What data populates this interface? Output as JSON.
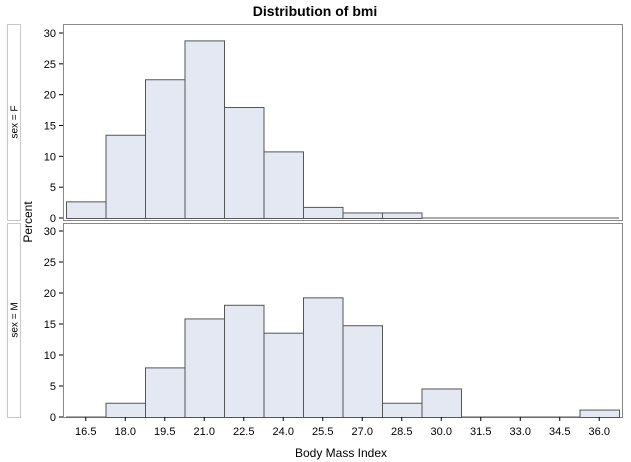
{
  "chart_data": {
    "type": "bar",
    "title": "Distribution of bmi",
    "xlabel": "Body Mass Index",
    "ylabel": "Percent",
    "x_ticks": [
      "16.5",
      "18.0",
      "19.5",
      "21.0",
      "22.5",
      "24.0",
      "25.5",
      "27.0",
      "28.5",
      "30.0",
      "31.5",
      "33.0",
      "34.5",
      "36.0"
    ],
    "bin_width": 1.5,
    "ylim": [
      0,
      30
    ],
    "y_ticks": [
      "0",
      "5",
      "10",
      "15",
      "20",
      "25",
      "30"
    ],
    "grid": false,
    "colors": {
      "bar_fill": "#e4e8f2",
      "bar_stroke": "#555555",
      "frame": "#888888",
      "strip_border": "#c8c8c8"
    },
    "panels": [
      {
        "strip_label": "sex = F",
        "values": [
          2.7,
          13.5,
          22.5,
          28.8,
          18.0,
          10.8,
          1.8,
          0.9,
          0.9,
          0,
          0,
          0,
          0,
          0
        ]
      },
      {
        "strip_label": "sex = M",
        "values": [
          0,
          2.3,
          8.0,
          15.9,
          18.1,
          13.6,
          19.3,
          14.8,
          2.3,
          4.6,
          0,
          0,
          0,
          1.2
        ]
      }
    ]
  }
}
